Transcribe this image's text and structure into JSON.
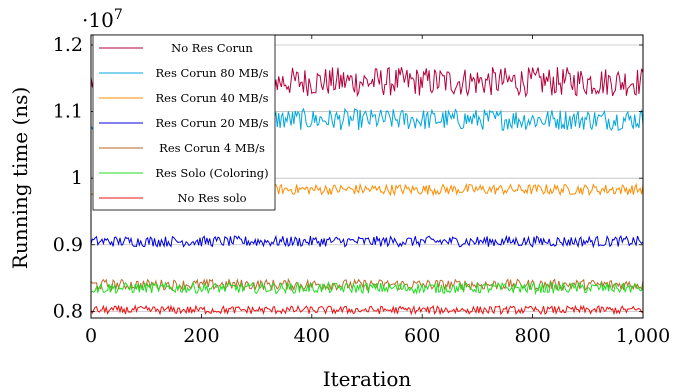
{
  "chart_data": {
    "type": "line",
    "xlabel": "Iteration",
    "ylabel": "Running time (ns)",
    "y_scale_label": "·10",
    "y_scale_exponent": "7",
    "xlim": [
      0,
      1000
    ],
    "ylim": [
      0.79,
      1.215
    ],
    "x_ticks": [
      0,
      200,
      400,
      600,
      800,
      1000
    ],
    "x_tick_labels": [
      "0",
      "200",
      "400",
      "600",
      "800",
      "1,000"
    ],
    "y_ticks": [
      0.8,
      0.9,
      1.0,
      1.1,
      1.2
    ],
    "y_tick_labels": [
      "0.8",
      "0.9",
      "1",
      "1.1",
      "1.2"
    ],
    "grid": "horizontal",
    "legend_position": "top-left",
    "series": [
      {
        "name": "No Res Corun",
        "color": "#b5003b",
        "mean": 1.145,
        "noise": 0.022
      },
      {
        "name": "Res Corun 80 MB/s",
        "color": "#00a6dd",
        "mean": 1.088,
        "noise": 0.016
      },
      {
        "name": "Res Corun 40 MB/s",
        "color": "#ff8c00",
        "mean": 0.983,
        "noise": 0.008
      },
      {
        "name": "Res Corun 20 MB/s",
        "color": "#0000e0",
        "mean": 0.905,
        "noise": 0.008
      },
      {
        "name": "Res Corun 4 MB/s",
        "color": "#b86a2a",
        "mean": 0.84,
        "noise": 0.008
      },
      {
        "name": "Res Solo (Coloring)",
        "color": "#22dd22",
        "mean": 0.835,
        "noise": 0.008
      },
      {
        "name": "No Res solo",
        "color": "#ee1111",
        "mean": 0.802,
        "noise": 0.006
      }
    ]
  }
}
